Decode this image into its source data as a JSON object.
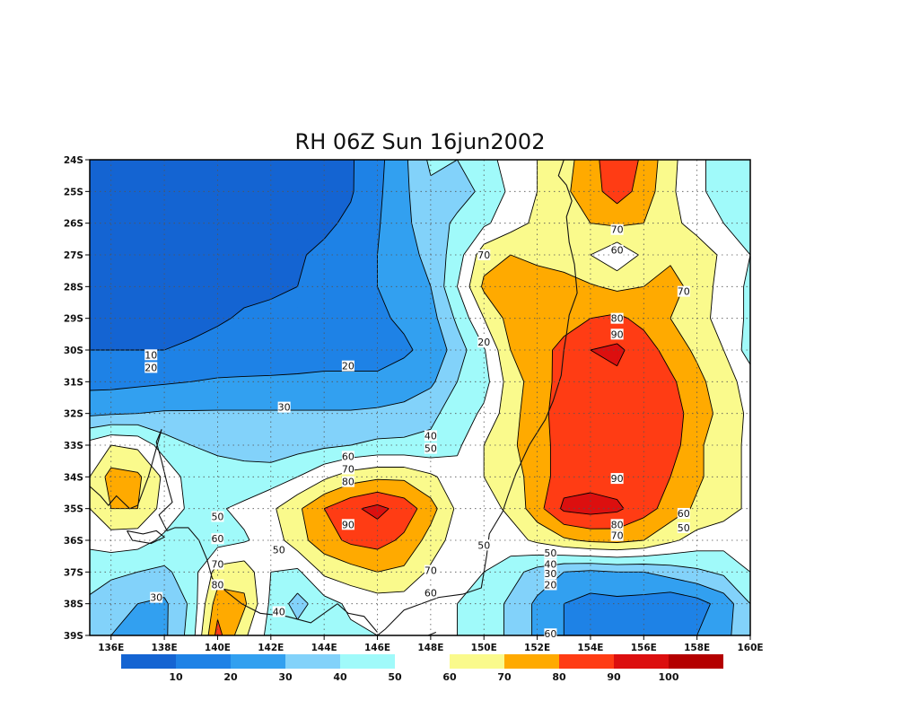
{
  "chart_data": {
    "type": "heatmap",
    "title": "RH 06Z Sun 16jun2002",
    "xlabel": "",
    "ylabel": "",
    "x_ticks": [
      "136E",
      "138E",
      "140E",
      "142E",
      "144E",
      "146E",
      "148E",
      "150E",
      "152E",
      "154E",
      "156E",
      "158E",
      "160E"
    ],
    "y_ticks": [
      "24S",
      "25S",
      "26S",
      "27S",
      "28S",
      "29S",
      "30S",
      "31S",
      "32S",
      "33S",
      "34S",
      "35S",
      "36S",
      "37S",
      "38S",
      "39S"
    ],
    "xlim": [
      135.2,
      160
    ],
    "ylim": [
      -39,
      -24
    ],
    "x_unit": "degrees East longitude",
    "y_unit": "degrees South latitude",
    "grid": true,
    "contour_levels": [
      10,
      20,
      30,
      40,
      50,
      60,
      70,
      80,
      90,
      100
    ],
    "colorbar": {
      "bins": [
        {
          "color": "#1464d2"
        },
        {
          "color": "#1e82e6"
        },
        {
          "color": "#32a0f0"
        },
        {
          "color": "#82d2fa"
        },
        {
          "color": "#a0fafa"
        },
        {
          "color": "#ffffff"
        },
        {
          "color": "#fafa8c"
        },
        {
          "color": "#ffaa00"
        },
        {
          "color": "#ff3c14"
        },
        {
          "color": "#dc0f0f"
        },
        {
          "color": "#b40000"
        }
      ],
      "tick_labels": [
        "10",
        "20",
        "30",
        "40",
        "50",
        "60",
        "70",
        "80",
        "90",
        "100"
      ]
    },
    "contour_labels": [
      {
        "text": "10",
        "lon": 137.5,
        "lat": -30.15
      },
      {
        "text": "20",
        "lon": 137.5,
        "lat": -30.55
      },
      {
        "text": "20",
        "lon": 144.9,
        "lat": -30.5
      },
      {
        "text": "20",
        "lon": 150.0,
        "lat": -29.75
      },
      {
        "text": "30",
        "lon": 142.5,
        "lat": -31.8
      },
      {
        "text": "40",
        "lon": 148.0,
        "lat": -32.7
      },
      {
        "text": "50",
        "lon": 148.0,
        "lat": -33.1
      },
      {
        "text": "60",
        "lon": 144.9,
        "lat": -33.35
      },
      {
        "text": "70",
        "lon": 144.9,
        "lat": -33.75
      },
      {
        "text": "80",
        "lon": 144.9,
        "lat": -34.15
      },
      {
        "text": "90",
        "lon": 144.9,
        "lat": -35.5
      },
      {
        "text": "50",
        "lon": 140.0,
        "lat": -35.25
      },
      {
        "text": "60",
        "lon": 140.0,
        "lat": -35.95
      },
      {
        "text": "70",
        "lon": 140.0,
        "lat": -36.75
      },
      {
        "text": "80",
        "lon": 140.0,
        "lat": -37.4
      },
      {
        "text": "50",
        "lon": 142.3,
        "lat": -36.3
      },
      {
        "text": "40",
        "lon": 142.3,
        "lat": -38.25
      },
      {
        "text": "30",
        "lon": 137.7,
        "lat": -37.8
      },
      {
        "text": "70",
        "lon": 148.0,
        "lat": -36.95
      },
      {
        "text": "60",
        "lon": 148.0,
        "lat": -37.65
      },
      {
        "text": "50",
        "lon": 150.0,
        "lat": -36.15
      },
      {
        "text": "70",
        "lon": 150.0,
        "lat": -27.0
      },
      {
        "text": "70",
        "lon": 155.0,
        "lat": -26.2
      },
      {
        "text": "60",
        "lon": 155.0,
        "lat": -26.85
      },
      {
        "text": "70",
        "lon": 157.5,
        "lat": -28.15
      },
      {
        "text": "80",
        "lon": 155.0,
        "lat": -29.0
      },
      {
        "text": "90",
        "lon": 155.0,
        "lat": -29.5
      },
      {
        "text": "90",
        "lon": 155.0,
        "lat": -34.05
      },
      {
        "text": "80",
        "lon": 155.0,
        "lat": -35.5
      },
      {
        "text": "70",
        "lon": 155.0,
        "lat": -35.85
      },
      {
        "text": "60",
        "lon": 157.5,
        "lat": -35.15
      },
      {
        "text": "50",
        "lon": 157.5,
        "lat": -35.6
      },
      {
        "text": "50",
        "lon": 152.5,
        "lat": -36.4
      },
      {
        "text": "40",
        "lon": 152.5,
        "lat": -36.75
      },
      {
        "text": "30",
        "lon": 152.5,
        "lat": -37.05
      },
      {
        "text": "20",
        "lon": 152.5,
        "lat": -37.4
      },
      {
        "text": "60",
        "lon": 152.5,
        "lat": -38.95
      }
    ]
  }
}
